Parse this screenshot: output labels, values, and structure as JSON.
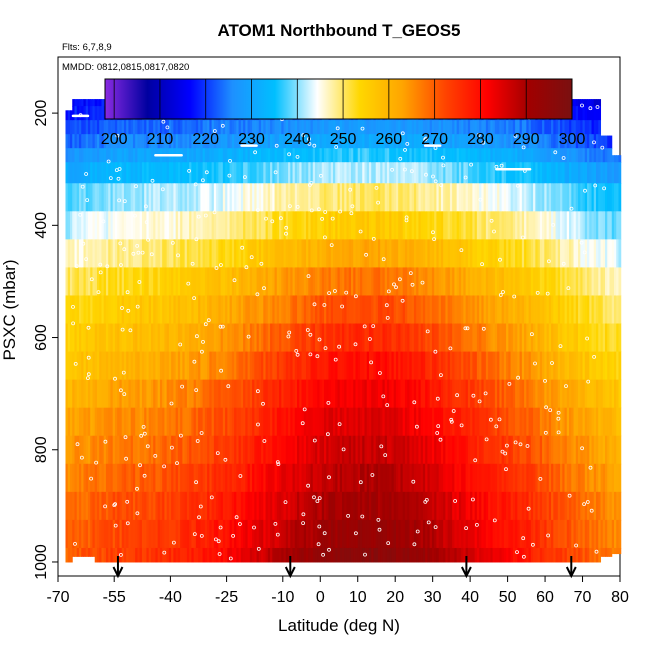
{
  "chart_data": {
    "type": "heatmap",
    "title": "ATOM1 Northbound T_GEOS5",
    "flights_note": "Flts: 6,7,8,9",
    "dates_note": "MMDD: 0812,0815,0817,0820",
    "xlabel": "Latitude (deg N)",
    "ylabel": "PSXC (mbar)",
    "xlim": [
      -70,
      80
    ],
    "ylim": [
      1025,
      100
    ],
    "y_reversed": true,
    "x_ticks": [
      -70,
      -55,
      -40,
      -25,
      -10,
      0,
      10,
      20,
      30,
      40,
      50,
      60,
      70,
      80
    ],
    "x_tick_labels": [
      "-70",
      "-55",
      "-40",
      "-25",
      "-10",
      "0",
      "10",
      "20",
      "30",
      "40",
      "50",
      "60",
      "70",
      "80"
    ],
    "y_ticks": [
      200,
      400,
      600,
      800,
      1000
    ],
    "y_tick_labels": [
      "200",
      "400",
      "600",
      "800",
      "1000"
    ],
    "colorbar": {
      "min": 198,
      "max": 300,
      "ticks": [
        200,
        210,
        220,
        230,
        240,
        250,
        260,
        270,
        280,
        290,
        300
      ],
      "tick_labels": [
        "200",
        "210",
        "220",
        "230",
        "240",
        "250",
        "260",
        "270",
        "280",
        "290",
        "300"
      ],
      "colors": [
        "#8a2be2",
        "#0000a0",
        "#0000ff",
        "#1e90ff",
        "#00bfff",
        "#ffffff",
        "#ffd700",
        "#ffa500",
        "#ff4500",
        "#ff0000",
        "#a00000",
        "#7a1010"
      ]
    },
    "pressure_levels": [
      175,
      200,
      225,
      250,
      275,
      300,
      350,
      400,
      450,
      500,
      550,
      600,
      650,
      700,
      750,
      800,
      850,
      900,
      950,
      1000
    ],
    "temperature_profile": {
      "levels": [
        175,
        250,
        300,
        350,
        400,
        450,
        500,
        550,
        600,
        650,
        700,
        750,
        800,
        850,
        900,
        950,
        1000
      ],
      "tropical_values": [
        221,
        231,
        242,
        250,
        256,
        262,
        268,
        272,
        276,
        280,
        283,
        285,
        287,
        289,
        291,
        293,
        296
      ],
      "polar_values": [
        218,
        225,
        233,
        240,
        244,
        248,
        252,
        255,
        257,
        259,
        262,
        264,
        266,
        268,
        270,
        271,
        272
      ]
    },
    "flight_arrows_lat": [
      -54,
      -8,
      39,
      67
    ]
  }
}
